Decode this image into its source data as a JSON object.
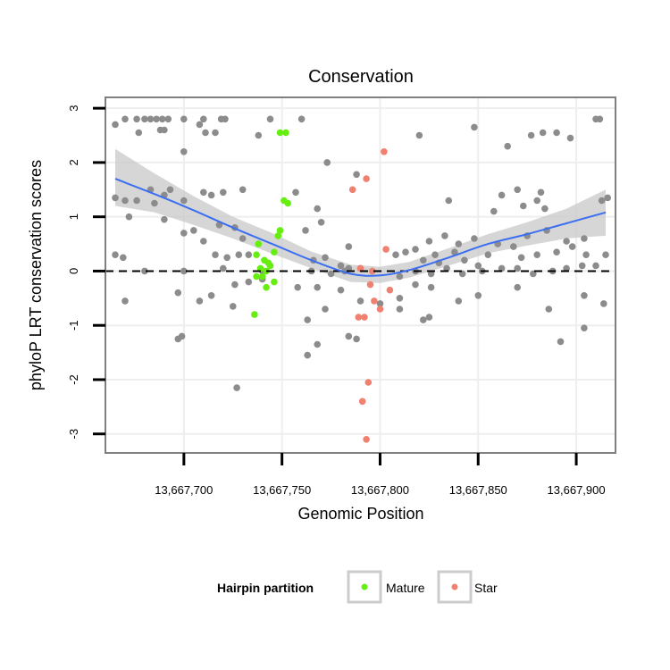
{
  "chart_data": {
    "type": "scatter",
    "title": "Conservation",
    "xlabel": "Genomic Position",
    "ylabel": "phyloP LRT conservation scores",
    "xlim": [
      13667660,
      13667920
    ],
    "ylim": [
      -3.35,
      3.2
    ],
    "x_ticks": [
      13667700,
      13667750,
      13667800,
      13667850,
      13667900
    ],
    "x_tick_labels": [
      "13,667,700",
      "13,667,750",
      "13,667,800",
      "13,667,850",
      "13,667,900"
    ],
    "y_ticks": [
      -3,
      -2,
      -1,
      0,
      1,
      2,
      3
    ],
    "y_tick_labels": [
      "-3",
      "-2",
      "-1",
      "0",
      "1",
      "2",
      "3"
    ],
    "reference_line": {
      "y": 0,
      "style": "dashed",
      "color": "#000000"
    },
    "grid": true,
    "legend": {
      "title": "Hairpin partition",
      "position": "bottom",
      "entries": [
        {
          "label": "Mature",
          "color": "#66ee11"
        },
        {
          "label": "Star",
          "color": "#f08070"
        }
      ]
    },
    "colors": {
      "other": "#8c8c8c",
      "mature": "#66ee11",
      "star": "#f08070",
      "smooth": "#3b6ef0",
      "ribbon": "#c8c8c8",
      "grid": "#eeeeee",
      "frame": "#7f7f7f"
    },
    "series": [
      {
        "name": "Other",
        "group": "other",
        "points": [
          [
            13667665,
            2.7
          ],
          [
            13667670,
            2.8
          ],
          [
            13667676,
            2.8
          ],
          [
            13667680,
            2.8
          ],
          [
            13667683,
            2.8
          ],
          [
            13667686,
            2.8
          ],
          [
            13667689,
            2.8
          ],
          [
            13667692,
            2.8
          ],
          [
            13667700,
            2.8
          ],
          [
            13667710,
            2.8
          ],
          [
            13667719,
            2.8
          ],
          [
            13667721,
            2.8
          ],
          [
            13667744,
            2.8
          ],
          [
            13667760,
            2.8
          ],
          [
            13667910,
            2.8
          ],
          [
            13667912,
            2.8
          ],
          [
            13667677,
            2.55
          ],
          [
            13667688,
            2.6
          ],
          [
            13667690,
            2.6
          ],
          [
            13667708,
            2.7
          ],
          [
            13667711,
            2.55
          ],
          [
            13667716,
            2.55
          ],
          [
            13667848,
            2.65
          ],
          [
            13667820,
            2.5
          ],
          [
            13667877,
            2.5
          ],
          [
            13667883,
            2.55
          ],
          [
            13667890,
            2.55
          ],
          [
            13667897,
            2.45
          ],
          [
            13667865,
            2.3
          ],
          [
            13667700,
            2.2
          ],
          [
            13667738,
            2.5
          ],
          [
            13667773,
            2.0
          ],
          [
            13667788,
            1.78
          ],
          [
            13667665,
            1.35
          ],
          [
            13667670,
            1.3
          ],
          [
            13667676,
            1.3
          ],
          [
            13667683,
            1.5
          ],
          [
            13667685,
            1.25
          ],
          [
            13667690,
            1.4
          ],
          [
            13667693,
            1.5
          ],
          [
            13667700,
            1.3
          ],
          [
            13667710,
            1.45
          ],
          [
            13667714,
            1.4
          ],
          [
            13667720,
            1.45
          ],
          [
            13667730,
            1.5
          ],
          [
            13667757,
            1.45
          ],
          [
            13667768,
            1.15
          ],
          [
            13667835,
            1.3
          ],
          [
            13667858,
            1.1
          ],
          [
            13667862,
            1.4
          ],
          [
            13667870,
            1.5
          ],
          [
            13667873,
            1.2
          ],
          [
            13667880,
            1.3
          ],
          [
            13667882,
            1.45
          ],
          [
            13667884,
            1.15
          ],
          [
            13667913,
            1.3
          ],
          [
            13667916,
            1.35
          ],
          [
            13667672,
            1.0
          ],
          [
            13667690,
            0.95
          ],
          [
            13667705,
            0.75
          ],
          [
            13667718,
            0.85
          ],
          [
            13667726,
            0.8
          ],
          [
            13667730,
            0.6
          ],
          [
            13667762,
            0.75
          ],
          [
            13667770,
            0.9
          ],
          [
            13667784,
            0.45
          ],
          [
            13667825,
            0.55
          ],
          [
            13667833,
            0.65
          ],
          [
            13667840,
            0.5
          ],
          [
            13667848,
            0.6
          ],
          [
            13667860,
            0.5
          ],
          [
            13667868,
            0.45
          ],
          [
            13667875,
            0.65
          ],
          [
            13667885,
            0.75
          ],
          [
            13667895,
            0.55
          ],
          [
            13667904,
            0.6
          ],
          [
            13667665,
            0.3
          ],
          [
            13667669,
            0.25
          ],
          [
            13667700,
            0.7
          ],
          [
            13667710,
            0.55
          ],
          [
            13667716,
            0.3
          ],
          [
            13667722,
            0.25
          ],
          [
            13667728,
            0.3
          ],
          [
            13667733,
            0.3
          ],
          [
            13667766,
            0.2
          ],
          [
            13667772,
            0.25
          ],
          [
            13667780,
            0.1
          ],
          [
            13667784,
            0.05
          ],
          [
            13667808,
            0.3
          ],
          [
            13667813,
            0.35
          ],
          [
            13667818,
            0.4
          ],
          [
            13667822,
            0.2
          ],
          [
            13667828,
            0.3
          ],
          [
            13667830,
            0.15
          ],
          [
            13667838,
            0.35
          ],
          [
            13667843,
            0.2
          ],
          [
            13667850,
            0.1
          ],
          [
            13667855,
            0.3
          ],
          [
            13667862,
            0.05
          ],
          [
            13667872,
            0.25
          ],
          [
            13667880,
            0.3
          ],
          [
            13667890,
            0.35
          ],
          [
            13667898,
            0.45
          ],
          [
            13667905,
            0.3
          ],
          [
            13667910,
            0.1
          ],
          [
            13667915,
            0.3
          ],
          [
            13667680,
            0.0
          ],
          [
            13667700,
            0.0
          ],
          [
            13667720,
            0.05
          ],
          [
            13667740,
            0.0
          ],
          [
            13667765,
            0.0
          ],
          [
            13667775,
            -0.05
          ],
          [
            13667782,
            0.0
          ],
          [
            13667790,
            0.05
          ],
          [
            13667810,
            -0.1
          ],
          [
            13667818,
            0.0
          ],
          [
            13667826,
            -0.05
          ],
          [
            13667834,
            0.05
          ],
          [
            13667842,
            -0.05
          ],
          [
            13667852,
            0.0
          ],
          [
            13667870,
            0.05
          ],
          [
            13667878,
            -0.05
          ],
          [
            13667888,
            0.0
          ],
          [
            13667895,
            0.05
          ],
          [
            13667903,
            0.1
          ],
          [
            13667670,
            -0.55
          ],
          [
            13667697,
            -0.4
          ],
          [
            13667708,
            -0.55
          ],
          [
            13667714,
            -0.45
          ],
          [
            13667726,
            -0.25
          ],
          [
            13667733,
            -0.2
          ],
          [
            13667740,
            -0.15
          ],
          [
            13667758,
            -0.3
          ],
          [
            13667768,
            -0.3
          ],
          [
            13667780,
            -0.35
          ],
          [
            13667790,
            -0.55
          ],
          [
            13667800,
            -0.6
          ],
          [
            13667810,
            -0.5
          ],
          [
            13667818,
            -0.25
          ],
          [
            13667826,
            -0.3
          ],
          [
            13667840,
            -0.55
          ],
          [
            13667850,
            -0.45
          ],
          [
            13667870,
            -0.3
          ],
          [
            13667886,
            -0.7
          ],
          [
            13667904,
            -0.45
          ],
          [
            13667914,
            -0.6
          ],
          [
            13667725,
            -0.65
          ],
          [
            13667763,
            -0.9
          ],
          [
            13667772,
            -0.7
          ],
          [
            13667810,
            -0.7
          ],
          [
            13667822,
            -0.9
          ],
          [
            13667825,
            -0.85
          ],
          [
            13667784,
            -1.2
          ],
          [
            13667788,
            -1.25
          ],
          [
            13667768,
            -1.35
          ],
          [
            13667763,
            -1.55
          ],
          [
            13667697,
            -1.25
          ],
          [
            13667699,
            -1.2
          ],
          [
            13667892,
            -1.3
          ],
          [
            13667904,
            -1.05
          ],
          [
            13667727,
            -2.15
          ]
        ]
      },
      {
        "name": "Mature",
        "group": "mature",
        "points": [
          [
            13667749,
            2.55
          ],
          [
            13667752,
            2.55
          ],
          [
            13667753,
            1.25
          ],
          [
            13667751,
            1.3
          ],
          [
            13667749,
            0.75
          ],
          [
            13667748,
            0.65
          ],
          [
            13667738,
            0.5
          ],
          [
            13667746,
            0.35
          ],
          [
            13667737,
            0.3
          ],
          [
            13667741,
            0.2
          ],
          [
            13667743,
            0.15
          ],
          [
            13667744,
            0.1
          ],
          [
            13667739,
            0.05
          ],
          [
            13667742,
            0.0
          ],
          [
            13667737,
            -0.1
          ],
          [
            13667740,
            -0.1
          ],
          [
            13667746,
            -0.2
          ],
          [
            13667742,
            -0.3
          ],
          [
            13667736,
            -0.8
          ]
        ]
      },
      {
        "name": "Star",
        "group": "star",
        "points": [
          [
            13667802,
            2.2
          ],
          [
            13667793,
            1.7
          ],
          [
            13667786,
            1.5
          ],
          [
            13667803,
            0.4
          ],
          [
            13667790,
            0.05
          ],
          [
            13667796,
            0.0
          ],
          [
            13667795,
            -0.25
          ],
          [
            13667805,
            -0.35
          ],
          [
            13667797,
            -0.55
          ],
          [
            13667800,
            -0.7
          ],
          [
            13667789,
            -0.85
          ],
          [
            13667792,
            -0.85
          ],
          [
            13667794,
            -2.05
          ],
          [
            13667791,
            -2.4
          ],
          [
            13667793,
            -3.1
          ]
        ]
      }
    ],
    "smooth_line": {
      "x": [
        13667665,
        13667685,
        13667705,
        13667725,
        13667745,
        13667765,
        13667785,
        13667800,
        13667815,
        13667835,
        13667855,
        13667875,
        13667895,
        13667915
      ],
      "y": [
        1.7,
        1.42,
        1.12,
        0.8,
        0.5,
        0.2,
        -0.05,
        -0.08,
        0.02,
        0.25,
        0.5,
        0.68,
        0.88,
        1.08
      ],
      "ribbon_low": [
        1.2,
        1.08,
        0.85,
        0.6,
        0.32,
        0.05,
        -0.2,
        -0.22,
        -0.12,
        0.1,
        0.33,
        0.47,
        0.6,
        0.65
      ],
      "ribbon_high": [
        2.25,
        1.8,
        1.38,
        1.0,
        0.7,
        0.36,
        0.12,
        0.08,
        0.17,
        0.42,
        0.68,
        0.9,
        1.15,
        1.5
      ]
    }
  }
}
